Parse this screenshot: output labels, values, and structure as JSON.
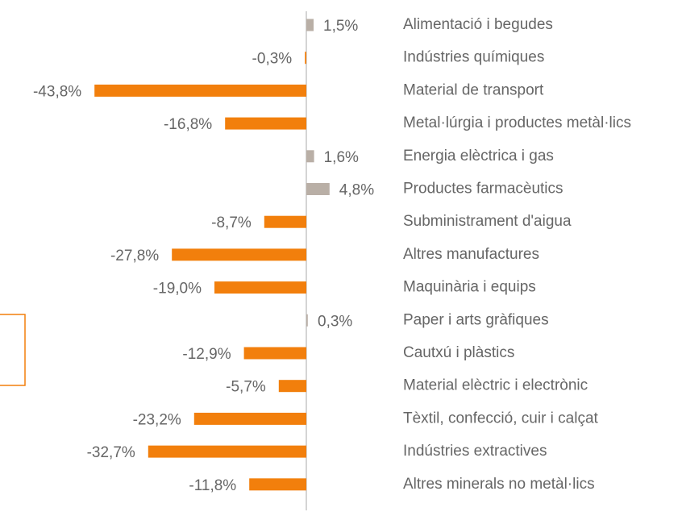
{
  "chart_data": {
    "type": "bar",
    "orientation": "horizontal",
    "categories": [
      "Alimentació i begudes",
      "Indústries químiques",
      "Material de transport",
      "Metal·lúrgia i productes metàl·lics",
      "Energia elèctrica i gas",
      "Productes farmacèutics",
      "Subministrament d'aigua",
      "Altres manufactures",
      "Maquinària i equips",
      "Paper i arts gràfiques",
      "Cautxú i plàstics",
      "Material elèctric i electrònic",
      "Tèxtil, confecció, cuir i calçat",
      "Indústries extractives",
      "Altres minerals no metàl·lics"
    ],
    "values": [
      1.5,
      -0.3,
      -43.8,
      -16.8,
      1.6,
      4.8,
      -8.7,
      -27.8,
      -19.0,
      0.3,
      -12.9,
      -5.7,
      -23.2,
      -32.7,
      -11.8
    ],
    "value_labels": [
      "1,5%",
      "-0,3%",
      "-43,8%",
      "-16,8%",
      "1,6%",
      "4,8%",
      "-8,7%",
      "-27,8%",
      "-19,0%",
      "0,3%",
      "-12,9%",
      "-5,7%",
      "-23,2%",
      "-32,7%",
      "-11,8%"
    ],
    "colors": {
      "positive": "#b9afa6",
      "negative": "#f27f0c"
    }
  }
}
